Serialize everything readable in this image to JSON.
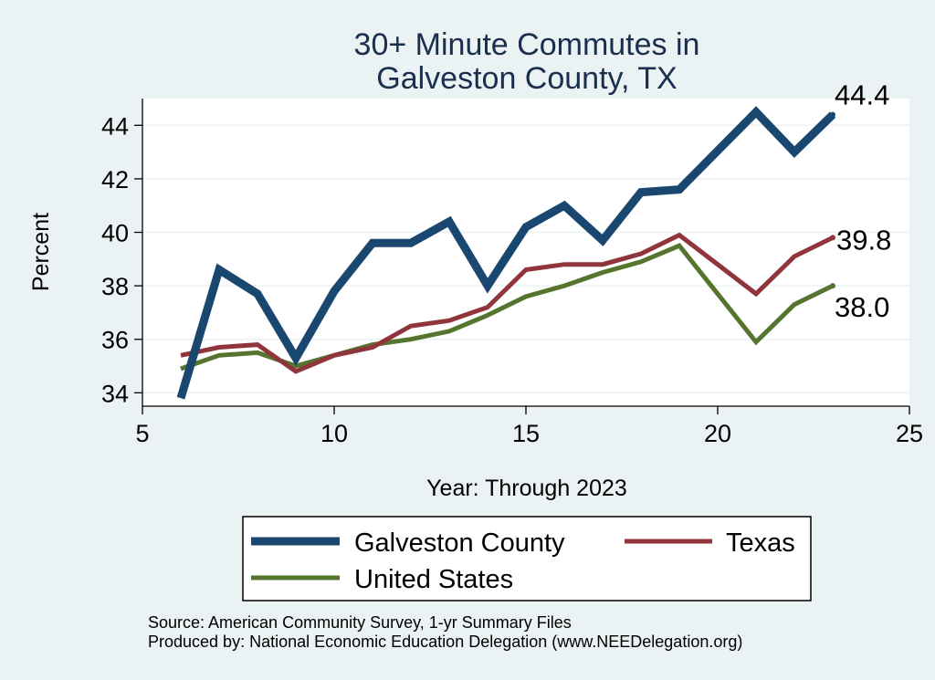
{
  "chart_data": {
    "type": "line",
    "title_lines": [
      "30+ Minute Commutes in",
      "Galveston County, TX"
    ],
    "xlabel": "Year: Through 2023",
    "ylabel": "Percent",
    "xlim": [
      5,
      25
    ],
    "ylim": [
      33.5,
      45
    ],
    "xticks": [
      5,
      10,
      15,
      20,
      25
    ],
    "yticks": [
      34,
      36,
      38,
      40,
      42,
      44
    ],
    "grid": true,
    "legend_position": "bottom",
    "series": [
      {
        "name": "Galveston County",
        "color": "#1a476f",
        "x": [
          6,
          7,
          8,
          9,
          10,
          11,
          12,
          13,
          14,
          15,
          16,
          17,
          18,
          19,
          21,
          22,
          23
        ],
        "values": [
          33.8,
          38.6,
          37.7,
          35.3,
          37.8,
          39.6,
          39.6,
          40.4,
          38.0,
          40.2,
          41.0,
          39.7,
          41.5,
          41.6,
          44.5,
          43.0,
          44.4
        ],
        "end_label": "44.4"
      },
      {
        "name": "Texas",
        "color": "#90353b",
        "x": [
          6,
          7,
          8,
          9,
          10,
          11,
          12,
          13,
          14,
          15,
          16,
          17,
          18,
          19,
          21,
          22,
          23
        ],
        "values": [
          35.4,
          35.7,
          35.8,
          34.8,
          35.4,
          35.7,
          36.5,
          36.7,
          37.2,
          38.6,
          38.8,
          38.8,
          39.2,
          39.9,
          37.7,
          39.1,
          39.8
        ],
        "end_label": "39.8"
      },
      {
        "name": "United States",
        "color": "#55752f",
        "x": [
          6,
          7,
          8,
          9,
          10,
          11,
          12,
          13,
          14,
          15,
          16,
          17,
          18,
          19,
          21,
          22,
          23
        ],
        "values": [
          34.9,
          35.4,
          35.5,
          35.0,
          35.4,
          35.8,
          36.0,
          36.3,
          36.9,
          37.6,
          38.0,
          38.5,
          38.9,
          39.5,
          35.9,
          37.3,
          38.0
        ],
        "end_label": "38.0"
      }
    ]
  },
  "notes": {
    "source": "Source: American Community Survey, 1-yr Summary Files",
    "produced_by": "Produced by: National Economic Education Delegation (www.NEEDelegation.org)"
  }
}
